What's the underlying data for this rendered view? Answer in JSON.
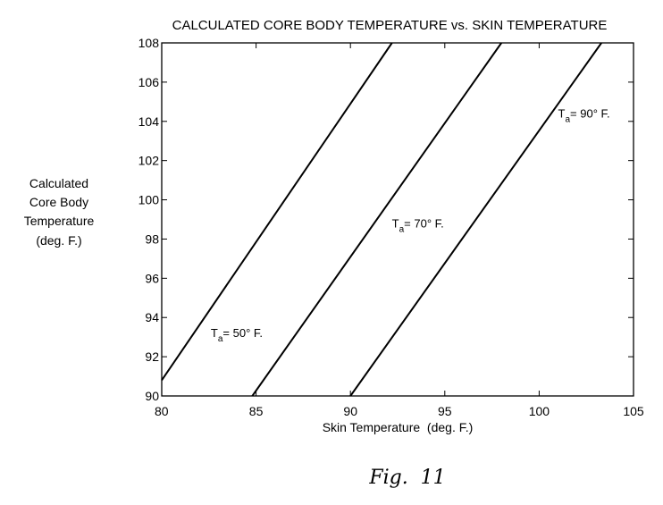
{
  "chart_data": {
    "type": "line",
    "title": "CALCULATED CORE BODY TEMPERATURE vs. SKIN TEMPERATURE",
    "xlabel": "Skin Temperature  (deg. F.)",
    "ylabel_lines": [
      "Calculated",
      "Core Body",
      "Temperature",
      "(deg. F.)"
    ],
    "xlim": [
      80,
      105
    ],
    "ylim": [
      90,
      108
    ],
    "xticks": [
      80,
      85,
      90,
      95,
      100,
      105
    ],
    "yticks": [
      90,
      92,
      94,
      96,
      98,
      100,
      102,
      104,
      106,
      108
    ],
    "grid": false,
    "series": [
      {
        "name_main": "T",
        "name_sub": "a",
        "name_rest": "= 50°  F.",
        "x": [
          80,
          92.2
        ],
        "y": [
          90.8,
          108
        ]
      },
      {
        "name_main": "T",
        "name_sub": "a",
        "name_rest": "= 70°  F.",
        "x": [
          84.8,
          98.0
        ],
        "y": [
          90,
          108
        ]
      },
      {
        "name_main": "T",
        "name_sub": "a",
        "name_rest": "= 90°  F.",
        "x": [
          90.0,
          103.3
        ],
        "y": [
          90,
          108
        ]
      }
    ],
    "label_anchors": [
      {
        "x": 82.6,
        "y": 93.0
      },
      {
        "x": 92.2,
        "y": 98.6
      },
      {
        "x": 101.0,
        "y": 104.2
      }
    ]
  },
  "caption": "Fig.  11"
}
